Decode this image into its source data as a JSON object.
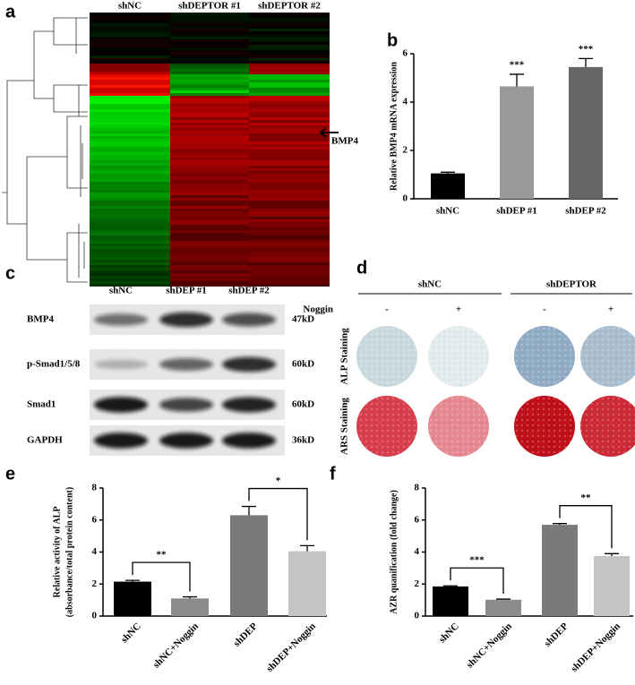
{
  "panel_labels": [
    "a",
    "b",
    "c",
    "d",
    "e",
    "f"
  ],
  "heatmap": {
    "columns": [
      "shNC",
      "shDEPTOR #1",
      "shDEPTOR #2"
    ],
    "arrow_label": "BMP4"
  },
  "western_blot": {
    "columns": [
      "shNC",
      "shDEP #1",
      "shDEP #2"
    ],
    "rows": [
      {
        "protein": "BMP4",
        "size": "47kD"
      },
      {
        "protein": "p-Smad1/5/8",
        "size": "60kD"
      },
      {
        "protein": "Smad1",
        "size": "60kD"
      },
      {
        "protein": "GAPDH",
        "size": "36kD"
      }
    ]
  },
  "staining": {
    "groups": [
      "shNC",
      "shDEPTOR"
    ],
    "treatment": "Noggin",
    "treatment_signs": [
      "-",
      "+",
      "-",
      "+"
    ],
    "rows": [
      "ALP Staining",
      "ARS Staining"
    ]
  },
  "chart_data": [
    {
      "type": "bar",
      "ylabel": [
        "Relative BMP4 mRNA expression"
      ],
      "categories": [
        "shNC",
        "shDEP #1",
        "shDEP #2"
      ],
      "values": [
        1.05,
        4.65,
        5.45
      ],
      "errors": [
        0.05,
        0.5,
        0.35
      ],
      "colors": [
        "#000000",
        "#999999",
        "#666666"
      ],
      "ylim": [
        0,
        6
      ],
      "yticks": [
        0,
        2,
        4,
        6
      ],
      "annotations": [
        "***",
        "***"
      ]
    },
    {
      "type": "bar",
      "ylabel": [
        "Relative activity of ALP",
        "(absorbance/total protein content)"
      ],
      "categories": [
        "shNC",
        "shNC+Noggin",
        "shDEP",
        "shDEP+Noggin"
      ],
      "values": [
        2.15,
        1.1,
        6.3,
        4.05
      ],
      "errors": [
        0.08,
        0.1,
        0.55,
        0.35
      ],
      "colors": [
        "#000000",
        "#8c8c8c",
        "#7a7a7a",
        "#c4c4c4"
      ],
      "ylim": [
        0,
        8
      ],
      "yticks": [
        0,
        2,
        4,
        6,
        8
      ],
      "annotations": [
        "**",
        "*"
      ]
    },
    {
      "type": "bar",
      "ylabel": [
        "AZR quanification (fold change)"
      ],
      "categories": [
        "shNC",
        "shNC+Noggin",
        "shDEP",
        "shDEP+Noggin"
      ],
      "values": [
        1.85,
        1.02,
        5.7,
        3.75
      ],
      "errors": [
        0.04,
        0.04,
        0.08,
        0.15
      ],
      "colors": [
        "#000000",
        "#8c8c8c",
        "#7a7a7a",
        "#c4c4c4"
      ],
      "ylim": [
        0,
        8
      ],
      "yticks": [
        0,
        2,
        4,
        6,
        8
      ],
      "annotations": [
        "***",
        "**"
      ]
    }
  ]
}
